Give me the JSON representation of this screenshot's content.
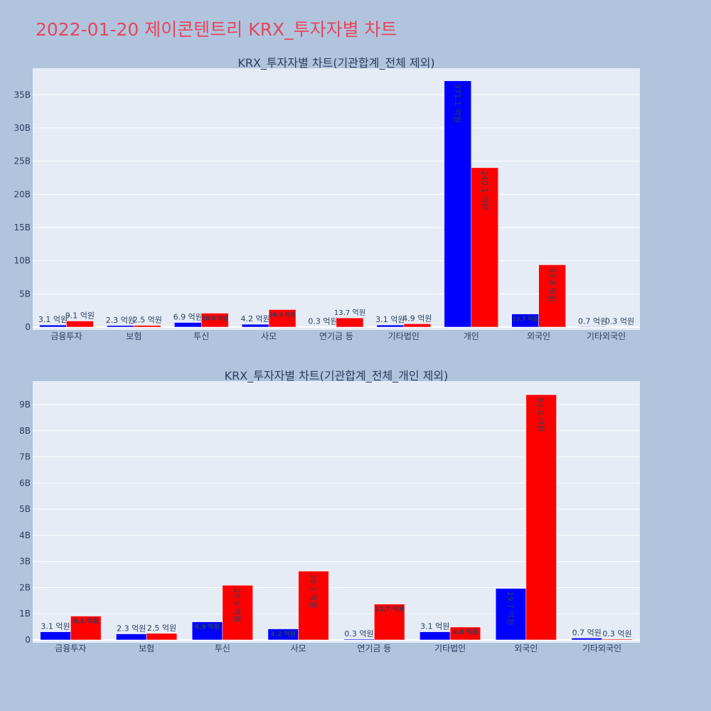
{
  "title": "2022-01-20 제이콘텐트리 KRX_투자자별 차트",
  "colors": {
    "series1": "#0000ff",
    "series2": "#ff0000",
    "plot_bg": "#e5ecf6",
    "page_bg": "#b0c4de",
    "title": "#e8465a"
  },
  "chart_data": [
    {
      "type": "bar",
      "title": "KRX_투자자별 차트(기관합계_전체 제외)",
      "categories": [
        "금융투자",
        "보험",
        "투신",
        "사모",
        "연기금 등",
        "기타법인",
        "개인",
        "외국인",
        "기타외국인"
      ],
      "ylim": [
        0,
        39
      ],
      "yticks": [
        0,
        5,
        10,
        15,
        20,
        25,
        30,
        35
      ],
      "ytick_labels": [
        "0",
        "5B",
        "10B",
        "15B",
        "20B",
        "25B",
        "30B",
        "35B"
      ],
      "grid": true,
      "legend": "none",
      "series": [
        {
          "values": [
            0.31,
            0.23,
            0.69,
            0.42,
            0.03,
            0.31,
            37.11,
            1.97,
            0.07
          ],
          "labels": [
            "3.1 억원",
            "2.3 억원",
            "6.9 억원",
            "4.2 억원",
            "0.3 억원",
            "3.1 억원",
            "371.1 억원",
            "19.7 억원",
            "0.7 억원"
          ]
        },
        {
          "values": [
            0.91,
            0.25,
            2.09,
            2.63,
            1.37,
            0.49,
            24.01,
            9.38,
            0.03
          ],
          "labels": [
            "9.1 억원",
            "2.5 억원",
            "20.9 억원",
            "26.3 억원",
            "13.7 억원",
            "4.9 억원",
            "240.1 억원",
            "93.8 억원",
            "0.3 억원"
          ]
        }
      ]
    },
    {
      "type": "bar",
      "title": "KRX_투자자별 차트(기관합계_전체_개인 제외)",
      "categories": [
        "금융투자",
        "보험",
        "투신",
        "사모",
        "연기금 등",
        "기타법인",
        "외국인",
        "기타외국인"
      ],
      "ylim": [
        0,
        9.9
      ],
      "yticks": [
        0,
        1,
        2,
        3,
        4,
        5,
        6,
        7,
        8,
        9
      ],
      "ytick_labels": [
        "0",
        "1B",
        "2B",
        "3B",
        "4B",
        "5B",
        "6B",
        "7B",
        "8B",
        "9B"
      ],
      "grid": true,
      "legend": "none",
      "series": [
        {
          "values": [
            0.31,
            0.23,
            0.69,
            0.42,
            0.03,
            0.31,
            1.97,
            0.07
          ],
          "labels": [
            "3.1 억원",
            "2.3 억원",
            "6.9 억원",
            "4.2 억원",
            "0.3 억원",
            "3.1 억원",
            "19.7 억원",
            "0.7 억원"
          ]
        },
        {
          "values": [
            0.91,
            0.25,
            2.09,
            2.63,
            1.37,
            0.49,
            9.38,
            0.03
          ],
          "labels": [
            "9.1 억원",
            "2.5 억원",
            "20.9 억원",
            "26.3 억원",
            "13.7 억원",
            "4.9 억원",
            "93.8 억원",
            "0.3 억원"
          ]
        }
      ]
    }
  ]
}
